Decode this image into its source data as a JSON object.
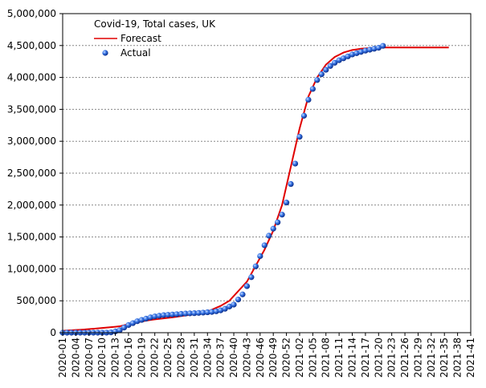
{
  "chart_data": {
    "type": "line",
    "title": "Covid-19, Total cases, UK",
    "legend": "upper left",
    "grid": true,
    "categories": [
      "2020-01",
      null,
      null,
      "2020-04",
      null,
      null,
      "2020-07",
      null,
      null,
      "2020-10",
      null,
      null,
      "2020-13",
      null,
      null,
      "2020-16",
      null,
      null,
      "2020-19",
      null,
      null,
      "2020-22",
      null,
      null,
      "2020-25",
      null,
      null,
      "2020-28",
      null,
      null,
      "2020-31",
      null,
      null,
      "2020-34",
      null,
      null,
      "2020-37",
      null,
      null,
      "2020-40",
      null,
      null,
      "2020-43",
      null,
      null,
      "2020-46",
      null,
      null,
      "2020-49",
      null,
      null,
      "2020-52",
      null,
      null,
      "2021-02",
      null,
      null,
      "2021-05",
      null,
      null,
      "2021-08",
      null,
      null,
      "2021-11",
      null,
      null,
      "2021-14",
      null,
      null,
      "2021-17",
      null,
      null,
      "2021-20",
      null,
      null,
      "2021-23",
      null,
      null,
      "2021-26",
      null,
      null,
      "2021-29",
      null,
      null,
      "2021-32",
      null,
      null,
      "2021-35",
      null,
      null,
      "2021-38",
      null,
      null,
      "2021-41"
    ],
    "ylim": [
      0,
      5000000
    ],
    "yticks": [
      0,
      {
        "value": 500000,
        "label": "500,000"
      },
      {
        "value": 1000000,
        "label": "1,000,000"
      },
      {
        "value": 1500000,
        "label": "1,500,000"
      },
      {
        "value": 2000000,
        "label": "2,000,000"
      },
      {
        "value": 2500000,
        "label": "2,500,000"
      },
      {
        "value": 3000000,
        "label": "3,000,000"
      },
      {
        "value": 3500000,
        "label": "3,500,000"
      },
      {
        "value": 4000000,
        "label": "4,000,000"
      },
      {
        "value": 4500000,
        "label": "4,500,000"
      },
      {
        "value": 5000000,
        "label": "5,000,000"
      }
    ],
    "series": [
      {
        "name": "Forecast",
        "kind": "line",
        "color": "#e00000",
        "values": [
          30000,
          34000,
          38000,
          42000,
          46000,
          50000,
          56000,
          62000,
          68000,
          74000,
          80000,
          87000,
          93000,
          100000,
          117000,
          133000,
          150000,
          162000,
          175000,
          188000,
          200000,
          208000,
          216000,
          224000,
          232000,
          240000,
          250000,
          260000,
          270000,
          280000,
          290000,
          303000,
          317000,
          330000,
          360000,
          390000,
          420000,
          460000,
          500000,
          575000,
          650000,
          725000,
          800000,
          925000,
          1050000,
          1175000,
          1300000,
          1450000,
          1600000,
          1800000,
          2000000,
          2300000,
          2600000,
          2900000,
          3200000,
          3450000,
          3700000,
          3850000,
          4000000,
          4100000,
          4200000,
          4260000,
          4320000,
          4355000,
          4390000,
          4410000,
          4430000,
          4440000,
          4450000,
          4455000,
          4460000,
          4465000,
          4470000,
          4470000,
          4470000,
          4470000,
          4470000,
          4470000,
          4470000,
          4470000,
          4470000,
          4470000,
          4470000,
          4470000,
          4470000,
          4470000,
          4470000,
          4470000,
          4470000,
          null,
          null,
          null,
          null,
          null
        ]
      },
      {
        "name": "Actual",
        "kind": "scatter",
        "color": "#1a56d8",
        "values": [
          0,
          0,
          0,
          0,
          0,
          0,
          0,
          0,
          0,
          0,
          1000,
          5000,
          20000,
          40000,
          80000,
          120000,
          150000,
          180000,
          200000,
          220000,
          240000,
          255000,
          265000,
          275000,
          280000,
          285000,
          290000,
          295000,
          300000,
          303000,
          306000,
          310000,
          315000,
          320000,
          325000,
          335000,
          350000,
          375000,
          410000,
          440000,
          520000,
          600000,
          730000,
          870000,
          1040000,
          1200000,
          1370000,
          1520000,
          1630000,
          1730000,
          1850000,
          2040000,
          2330000,
          2650000,
          3070000,
          3400000,
          3650000,
          3820000,
          3960000,
          4050000,
          4120000,
          4180000,
          4230000,
          4270000,
          4300000,
          4330000,
          4360000,
          4380000,
          4400000,
          4420000,
          4435000,
          4450000,
          4465000,
          4495000,
          null,
          null,
          null,
          null,
          null,
          null,
          null,
          null,
          null,
          null,
          null,
          null,
          null,
          null,
          null,
          null,
          null,
          null,
          null,
          null
        ]
      }
    ]
  }
}
